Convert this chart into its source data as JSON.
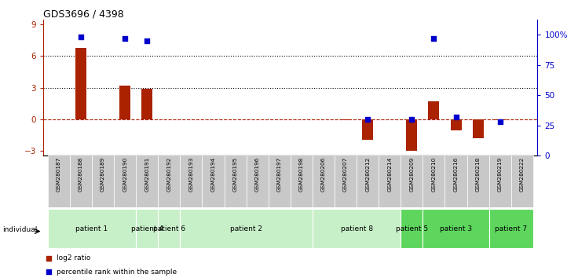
{
  "title": "GDS3696 / 4398",
  "samples": [
    "GSM280187",
    "GSM280188",
    "GSM280189",
    "GSM280190",
    "GSM280191",
    "GSM280192",
    "GSM280193",
    "GSM280194",
    "GSM280195",
    "GSM280196",
    "GSM280197",
    "GSM280198",
    "GSM280206",
    "GSM280207",
    "GSM280212",
    "GSM280214",
    "GSM280209",
    "GSM280210",
    "GSM280216",
    "GSM280218",
    "GSM280219",
    "GSM280222"
  ],
  "log2_ratio": [
    0,
    6.8,
    0,
    3.2,
    2.9,
    0,
    0,
    0,
    0,
    0,
    0,
    0,
    0,
    -0.1,
    -2.0,
    0,
    -3.0,
    1.7,
    -1.1,
    -1.8,
    -0.1,
    0
  ],
  "percentile_rank_pct": [
    null,
    98,
    null,
    97,
    95,
    null,
    null,
    null,
    null,
    null,
    null,
    null,
    null,
    null,
    30,
    null,
    30,
    97,
    32,
    null,
    28,
    null
  ],
  "patient_groups": [
    {
      "label": "patient 1",
      "start": 0,
      "end": 4,
      "color": "#c8f0c8"
    },
    {
      "label": "patient 4",
      "start": 4,
      "end": 5,
      "color": "#c8f0c8"
    },
    {
      "label": "patient 6",
      "start": 5,
      "end": 6,
      "color": "#c8f0c8"
    },
    {
      "label": "patient 2",
      "start": 6,
      "end": 12,
      "color": "#c8f0c8"
    },
    {
      "label": "patient 8",
      "start": 12,
      "end": 16,
      "color": "#c8f0c8"
    },
    {
      "label": "patient 5",
      "start": 16,
      "end": 17,
      "color": "#5ed65e"
    },
    {
      "label": "patient 3",
      "start": 17,
      "end": 20,
      "color": "#5ed65e"
    },
    {
      "label": "patient 7",
      "start": 20,
      "end": 22,
      "color": "#5ed65e"
    }
  ],
  "ylim_left": [
    -3.5,
    9.5
  ],
  "ylim_right": [
    0,
    112.5
  ],
  "yticks_left": [
    -3,
    0,
    3,
    6,
    9
  ],
  "yticks_right": [
    0,
    25,
    50,
    75,
    100
  ],
  "ytick_labels_right": [
    "0",
    "25",
    "50",
    "75",
    "100%"
  ],
  "hlines_dotted": [
    3,
    6
  ],
  "hline_dashed": 0,
  "bar_color": "#aa2200",
  "dot_color": "#0000cc",
  "bar_width": 0.5,
  "dot_size": 18,
  "tick_color": "#aa2200",
  "right_tick_color": "#0000cc",
  "legend_log2_color": "#aa2200",
  "legend_pct_color": "#0000cc",
  "sample_box_color": "#c8c8c8",
  "group_border_color": "#ffffff"
}
